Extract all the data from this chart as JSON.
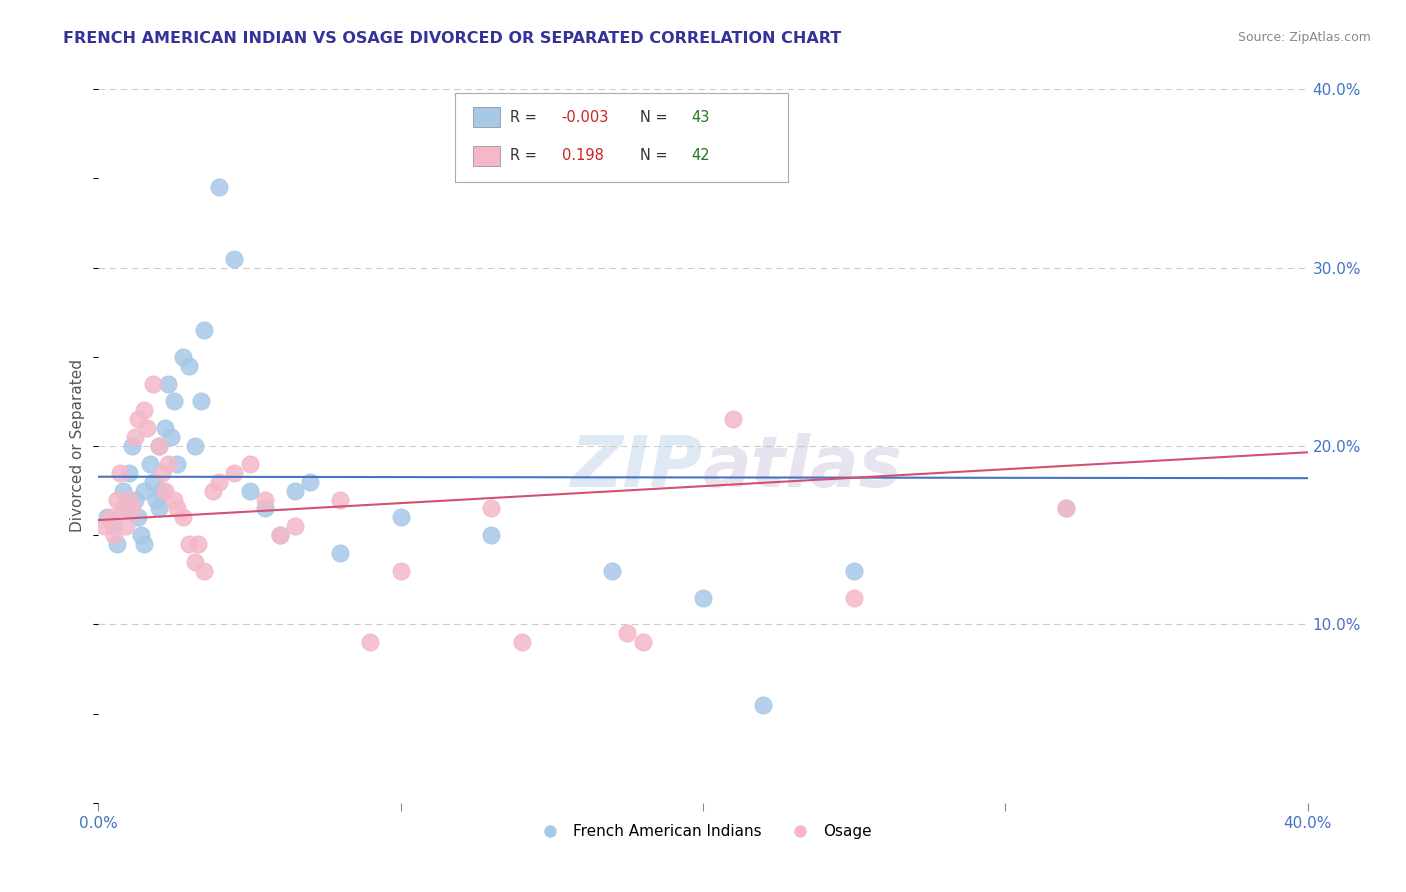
{
  "title": "FRENCH AMERICAN INDIAN VS OSAGE DIVORCED OR SEPARATED CORRELATION CHART",
  "source": "Source: ZipAtlas.com",
  "ylabel": "Divorced or Separated",
  "xlim": [
    0.0,
    40.0
  ],
  "ylim": [
    0.0,
    40.0
  ],
  "legend_labels": [
    "French American Indians",
    "Osage"
  ],
  "blue_R": "-0.003",
  "blue_N": "43",
  "pink_R": "0.198",
  "pink_N": "42",
  "blue_color": "#a8c8e8",
  "pink_color": "#f4b8c8",
  "blue_line_color": "#4472c4",
  "pink_line_color": "#d45070",
  "grid_color": "#cccccc",
  "tick_color": "#4472c4",
  "title_color": "#333399",
  "source_color": "#888888",
  "ylabel_color": "#555555",
  "watermark_color": "#d0dff0",
  "blue_scatter_x": [
    0.3,
    0.5,
    0.6,
    0.8,
    0.9,
    1.0,
    1.1,
    1.2,
    1.3,
    1.4,
    1.5,
    1.5,
    1.7,
    1.8,
    1.9,
    2.0,
    2.0,
    2.1,
    2.2,
    2.3,
    2.4,
    2.5,
    2.6,
    2.8,
    3.0,
    3.2,
    3.4,
    3.5,
    4.0,
    4.5,
    5.0,
    5.5,
    6.0,
    6.5,
    7.0,
    8.0,
    10.0,
    13.0,
    17.0,
    20.0,
    25.0,
    32.0,
    22.0
  ],
  "blue_scatter_y": [
    16.0,
    15.5,
    14.5,
    17.5,
    16.5,
    18.5,
    20.0,
    17.0,
    16.0,
    15.0,
    17.5,
    14.5,
    19.0,
    18.0,
    17.0,
    20.0,
    16.5,
    17.5,
    21.0,
    23.5,
    20.5,
    22.5,
    19.0,
    25.0,
    24.5,
    20.0,
    22.5,
    26.5,
    34.5,
    30.5,
    17.5,
    16.5,
    15.0,
    17.5,
    18.0,
    14.0,
    16.0,
    15.0,
    13.0,
    11.5,
    13.0,
    16.5,
    5.5
  ],
  "pink_scatter_x": [
    0.2,
    0.4,
    0.5,
    0.6,
    0.7,
    0.8,
    0.9,
    1.0,
    1.1,
    1.2,
    1.3,
    1.5,
    1.6,
    1.8,
    2.0,
    2.1,
    2.2,
    2.3,
    2.5,
    2.8,
    3.0,
    3.2,
    3.5,
    4.5,
    5.0,
    5.5,
    6.5,
    8.0,
    10.0,
    14.0,
    18.0,
    21.0,
    25.0,
    32.0,
    13.0,
    17.5,
    9.0,
    4.0,
    3.8,
    3.3,
    2.6,
    6.0
  ],
  "pink_scatter_y": [
    15.5,
    16.0,
    15.0,
    17.0,
    18.5,
    16.5,
    15.5,
    17.0,
    16.5,
    20.5,
    21.5,
    22.0,
    21.0,
    23.5,
    20.0,
    18.5,
    17.5,
    19.0,
    17.0,
    16.0,
    14.5,
    13.5,
    13.0,
    18.5,
    19.0,
    17.0,
    15.5,
    17.0,
    13.0,
    9.0,
    9.0,
    21.5,
    11.5,
    16.5,
    16.5,
    9.5,
    9.0,
    18.0,
    17.5,
    14.5,
    16.5,
    15.0
  ]
}
